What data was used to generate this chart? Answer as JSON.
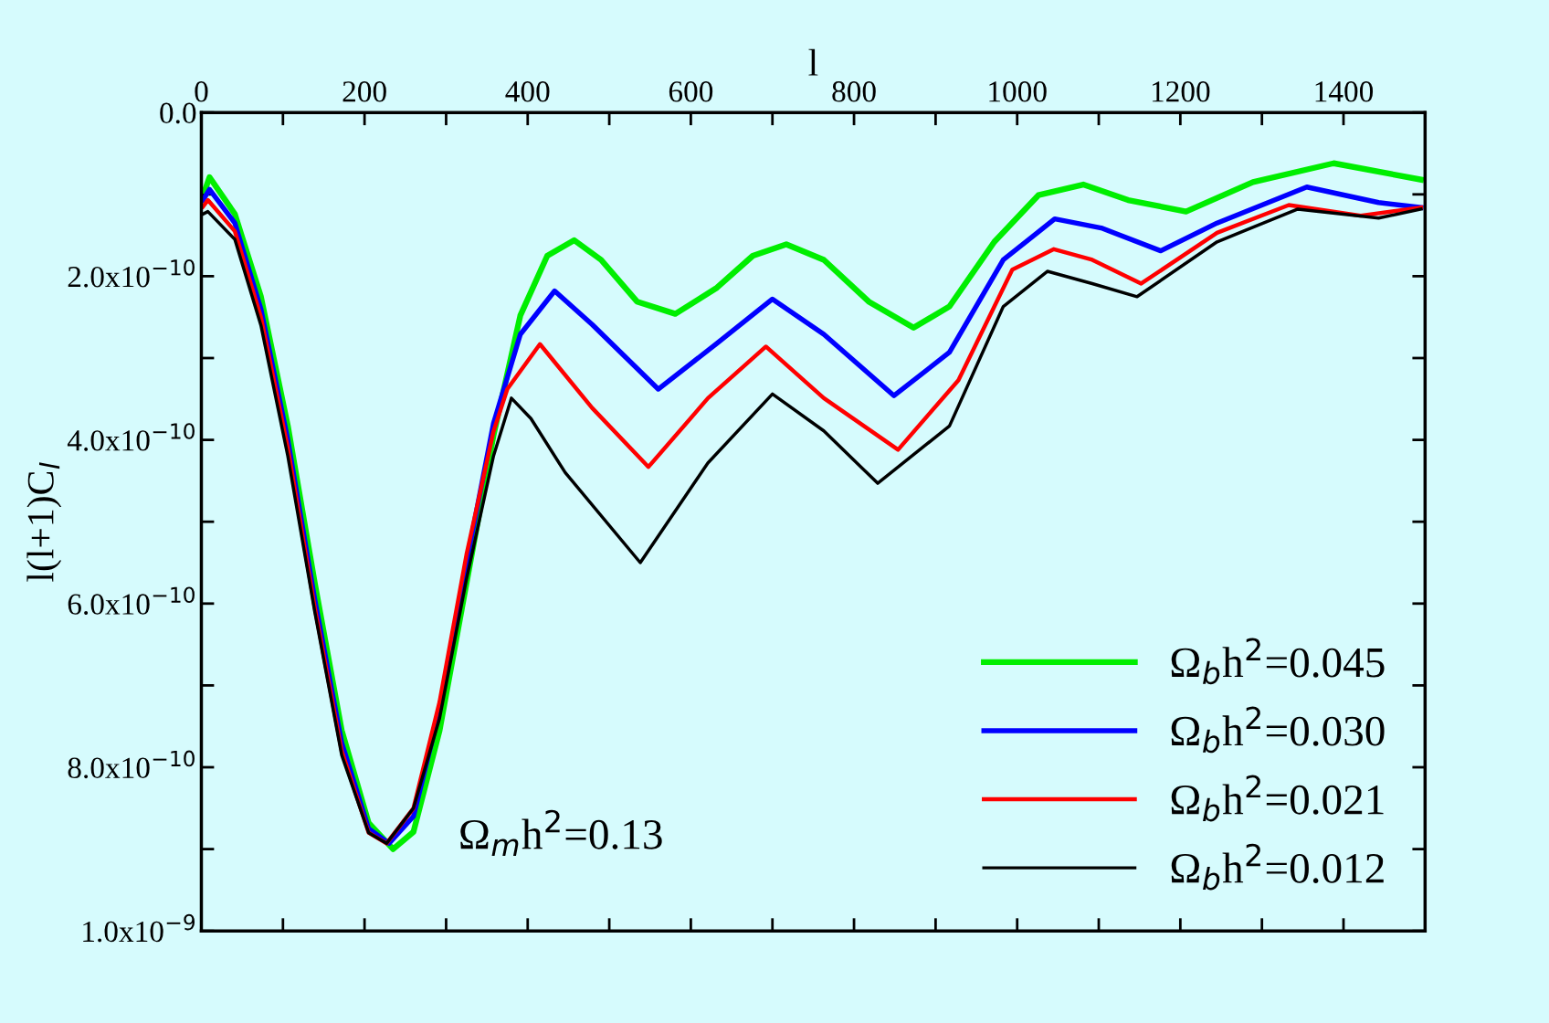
{
  "chart_data": {
    "type": "line",
    "xlabel": "l",
    "ylabel": "l(l+1)C$_{l}$",
    "xlim": [
      0,
      1500
    ],
    "ylim": [
      1e-09,
      0.0
    ],
    "xticks": [
      0,
      200,
      400,
      600,
      800,
      1000,
      1200,
      1400
    ],
    "yticks": [
      {
        "value": 0.0,
        "label": "0.0"
      },
      {
        "value": 2e-10,
        "label": "2.0x10$^{−10}$"
      },
      {
        "value": 4e-10,
        "label": "4.0x10$^{−10}$"
      },
      {
        "value": 6e-10,
        "label": "6.0x10$^{−10}$"
      },
      {
        "value": 8e-10,
        "label": "8.0x10$^{−10}$"
      },
      {
        "value": 1e-09,
        "label": "1.0x10$^{−9}$"
      }
    ],
    "grid": false,
    "legend": "bottom right",
    "marker": "none",
    "line_style": "solid",
    "annotations": [
      "Ω$_{m}$h$^{2}$=0.13"
    ],
    "series": [
      {
        "name": "Ω$_{b}$h$^{2}$=0.045",
        "color": "#00ee00",
        "x": [
          4,
          10,
          41,
          73,
          106,
          139,
          172,
          205,
          235,
          260,
          292,
          325,
          358,
          391,
          424,
          457,
          490,
          534,
          581,
          632,
          676,
          717,
          763,
          818,
          873,
          917,
          972,
          1026,
          1081,
          1136,
          1207,
          1289,
          1388,
          1495
        ],
        "values": [
          9.6e-11,
          7.9e-11,
          1.24e-10,
          2.25e-10,
          3.83e-10,
          5.75e-10,
          7.55e-10,
          8.68e-10,
          9e-10,
          8.79e-10,
          7.55e-10,
          5.75e-10,
          3.95e-10,
          2.48e-10,
          1.75e-10,
          1.56e-10,
          1.8e-10,
          2.31e-10,
          2.46e-10,
          2.14e-10,
          1.75e-10,
          1.61e-10,
          1.8e-10,
          2.31e-10,
          2.63e-10,
          2.37e-10,
          1.58e-10,
          1.01e-10,
          8.8e-11,
          1.07e-10,
          1.21e-10,
          8.5e-11,
          6.2e-11,
          8.2e-11
        ]
      },
      {
        "name": "Ω$_{b}$h$^{2}$=0.030",
        "color": "#0000ff",
        "x": [
          2,
          10,
          41,
          73,
          106,
          139,
          172,
          205,
          230,
          260,
          292,
          325,
          358,
          391,
          433,
          479,
          560,
          632,
          700,
          763,
          849,
          917,
          983,
          1046,
          1103,
          1176,
          1245,
          1355,
          1443,
          1495
        ],
        "values": [
          1.07e-10,
          9.4e-11,
          1.35e-10,
          2.4e-10,
          4e-10,
          5.95e-10,
          7.7e-10,
          8.75e-10,
          8.93e-10,
          8.6e-10,
          7.3e-10,
          5.5e-10,
          3.8e-10,
          2.71e-10,
          2.18e-10,
          2.59e-10,
          3.38e-10,
          2.82e-10,
          2.28e-10,
          2.71e-10,
          3.46e-10,
          2.93e-10,
          1.8e-10,
          1.3e-10,
          1.41e-10,
          1.69e-10,
          1.35e-10,
          9.1e-11,
          1.1e-10,
          1.16e-10
        ]
      },
      {
        "name": "Ω$_{b}$h$^{2}$=0.021",
        "color": "#ff0000",
        "x": [
          2,
          8,
          41,
          73,
          106,
          139,
          172,
          205,
          227,
          260,
          292,
          325,
          358,
          375,
          415,
          479,
          548,
          621,
          692,
          763,
          854,
          928,
          994,
          1045,
          1092,
          1152,
          1245,
          1333,
          1421,
          1495
        ],
        "values": [
          1.15e-10,
          1.07e-10,
          1.45e-10,
          2.5e-10,
          4.1e-10,
          6.05e-10,
          7.8e-10,
          8.8e-10,
          8.93e-10,
          8.5e-10,
          7.2e-10,
          5.4e-10,
          3.9e-10,
          3.38e-10,
          2.83e-10,
          3.61e-10,
          4.33e-10,
          3.49e-10,
          2.86e-10,
          3.49e-10,
          4.12e-10,
          3.27e-10,
          1.92e-10,
          1.67e-10,
          1.8e-10,
          2.09e-10,
          1.47e-10,
          1.13e-10,
          1.26e-10,
          1.16e-10
        ]
      },
      {
        "name": "Ω$_{b}$h$^{2}$=0.012",
        "color": "#000000",
        "x": [
          2,
          8,
          41,
          73,
          106,
          139,
          172,
          205,
          227,
          260,
          292,
          325,
          358,
          380,
          404,
          446,
          538,
          621,
          700,
          763,
          829,
          917,
          983,
          1037,
          1092,
          1147,
          1245,
          1344,
          1443,
          1495
        ],
        "values": [
          1.24e-10,
          1.21e-10,
          1.55e-10,
          2.6e-10,
          4.2e-10,
          6.1e-10,
          7.85e-10,
          8.8e-10,
          8.93e-10,
          8.5e-10,
          7.4e-10,
          5.7e-10,
          4.2e-10,
          3.49e-10,
          3.74e-10,
          4.4e-10,
          5.5e-10,
          4.28e-10,
          3.44e-10,
          3.89e-10,
          4.53e-10,
          3.83e-10,
          2.37e-10,
          1.94e-10,
          2.09e-10,
          2.25e-10,
          1.58e-10,
          1.18e-10,
          1.29e-10,
          1.18e-10
        ]
      }
    ]
  }
}
